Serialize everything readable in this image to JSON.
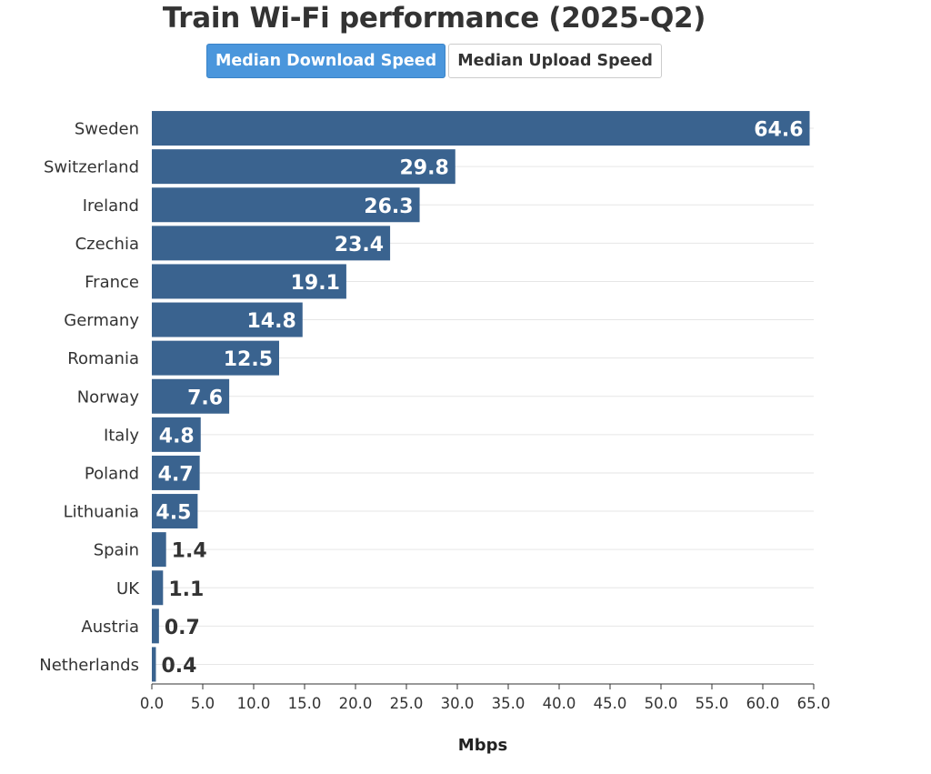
{
  "header": {
    "title": "Train Wi-Fi performance (2025-Q2)"
  },
  "toggle": {
    "download_label": "Median Download Speed",
    "upload_label": "Median Upload Speed",
    "selected": "download"
  },
  "colors": {
    "bar": "#3a638f",
    "active_button": "#4a96dc",
    "inside_label": "#ffffff",
    "outside_label": "#333333"
  },
  "chart_data": {
    "type": "bar",
    "orientation": "horizontal",
    "title": "Train Wi-Fi performance (2025-Q2)",
    "xlabel": "Mbps",
    "ylabel": "",
    "categories": [
      "Sweden",
      "Switzerland",
      "Ireland",
      "Czechia",
      "France",
      "Germany",
      "Romania",
      "Norway",
      "Italy",
      "Poland",
      "Lithuania",
      "Spain",
      "UK",
      "Austria",
      "Netherlands"
    ],
    "values": [
      64.6,
      29.8,
      26.3,
      23.4,
      19.1,
      14.8,
      12.5,
      7.6,
      4.8,
      4.7,
      4.5,
      1.4,
      1.1,
      0.7,
      0.4
    ],
    "xlim": [
      0,
      65
    ],
    "xticks": [
      "0.0",
      "5.0",
      "10.0",
      "15.0",
      "20.0",
      "25.0",
      "30.0",
      "35.0",
      "40.0",
      "45.0",
      "50.0",
      "55.0",
      "60.0",
      "65.0"
    ],
    "grid": true,
    "legend": "none"
  }
}
